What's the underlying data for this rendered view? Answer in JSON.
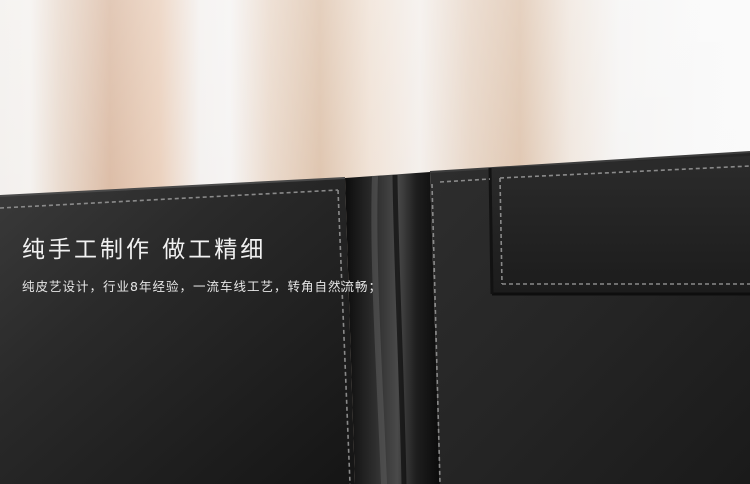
{
  "headline": "纯手工制作  做工精细",
  "subline": "纯皮艺设计，行业8年经验，一流车线工艺，转角自然流畅；",
  "colors": {
    "leather": "#1e1e1e",
    "stitch": "#8a8a8a",
    "text": "#f2f2f2"
  },
  "photo_subject": "black-leather-folder-closeup"
}
